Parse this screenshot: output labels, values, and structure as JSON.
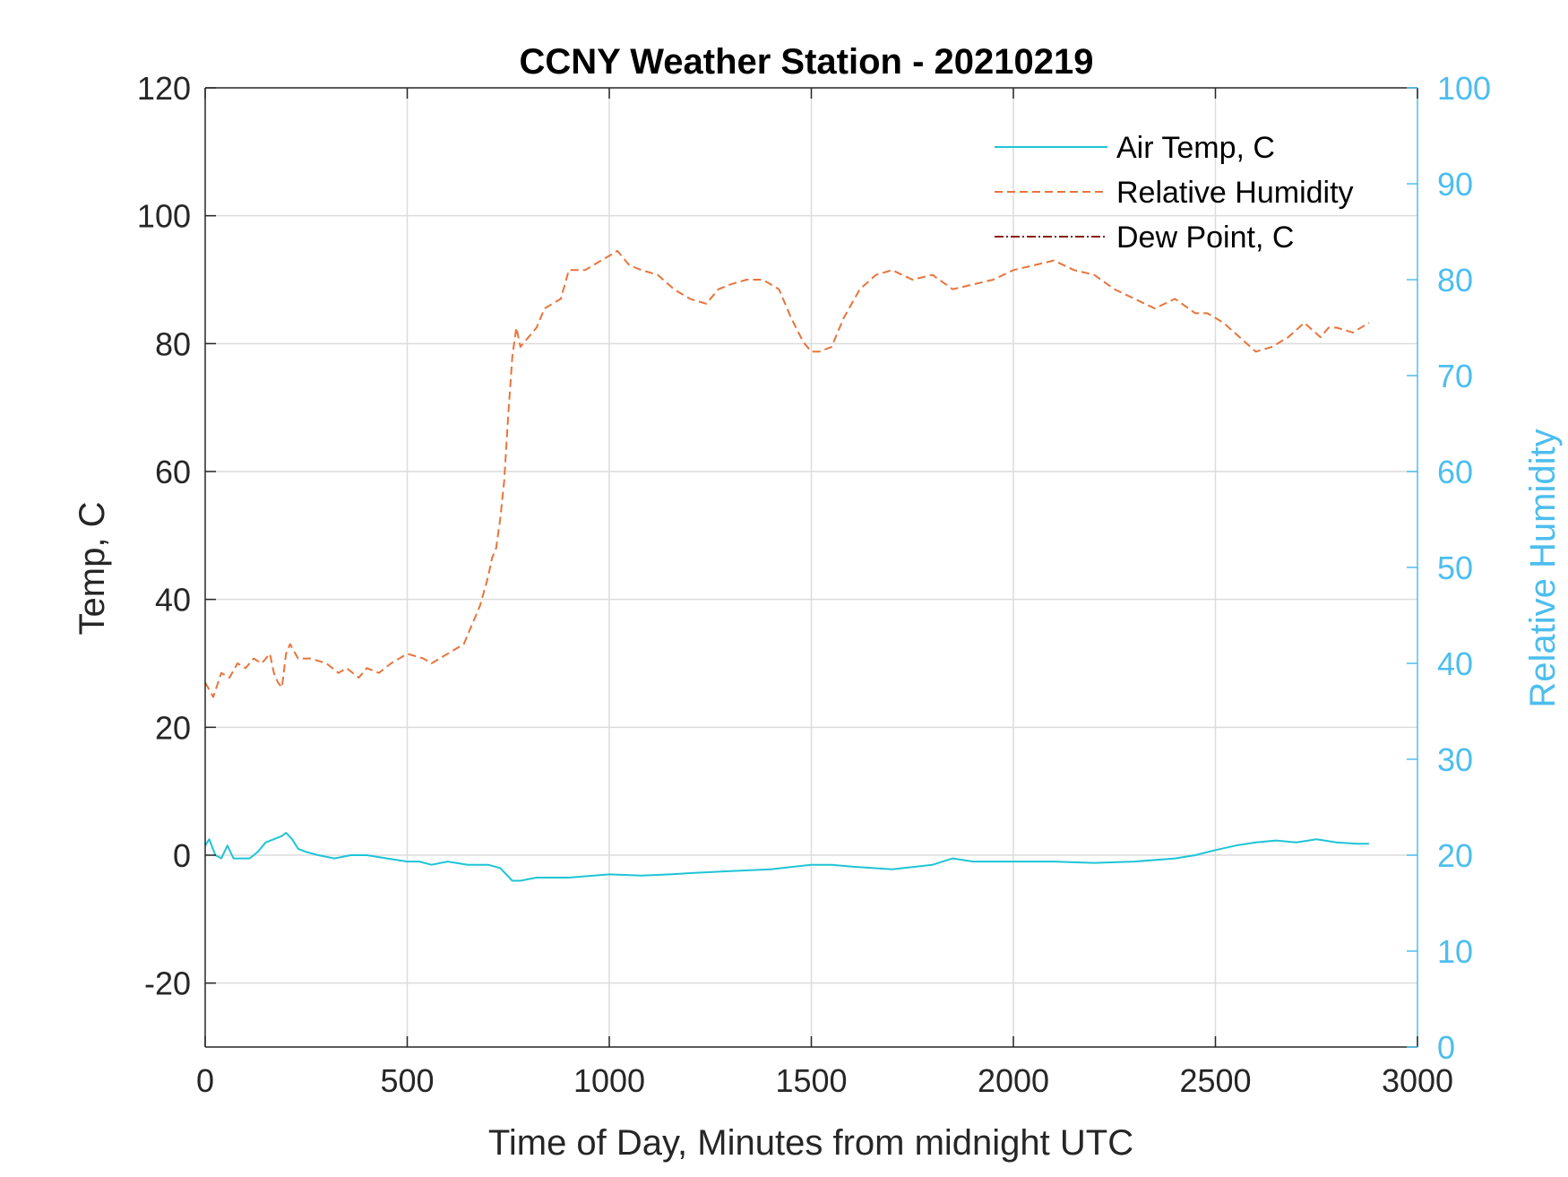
{
  "chart_data": {
    "type": "line",
    "title": "CCNY Weather Station - 20210219",
    "xlabel": "Time of Day, Minutes from midnight UTC",
    "ylabel_left": "Temp, C",
    "ylabel_right": "Relative Humidity",
    "xlim": [
      0,
      3000
    ],
    "ylim_left": [
      -30,
      120
    ],
    "ylim_right": [
      0,
      100
    ],
    "xticks": [
      0,
      500,
      1000,
      1500,
      2000,
      2500,
      3000
    ],
    "yticks_left": [
      -20,
      0,
      20,
      40,
      60,
      80,
      100,
      120
    ],
    "yticks_right": [
      0,
      10,
      20,
      30,
      40,
      50,
      60,
      70,
      80,
      90,
      100
    ],
    "grid": true,
    "legend_position": "top-right",
    "colors": {
      "air_temp": "#1FC4D6",
      "humidity": "#E8743B",
      "dew_point": "#8B1A1A",
      "right_axis": "#4DBEEE",
      "axis": "#262626"
    },
    "series": [
      {
        "name": "Air Temp, C",
        "axis": "left",
        "style": "solid",
        "x": [
          0,
          10,
          25,
          40,
          55,
          70,
          90,
          110,
          130,
          150,
          170,
          190,
          200,
          215,
          230,
          250,
          280,
          320,
          360,
          400,
          450,
          500,
          530,
          560,
          600,
          650,
          700,
          730,
          745,
          760,
          780,
          820,
          900,
          1000,
          1080,
          1150,
          1200,
          1300,
          1400,
          1500,
          1550,
          1600,
          1700,
          1800,
          1850,
          1900,
          2000,
          2100,
          2200,
          2300,
          2400,
          2450,
          2500,
          2550,
          2600,
          2650,
          2700,
          2750,
          2800,
          2850,
          2880
        ],
        "values": [
          1.5,
          2.5,
          0,
          -0.5,
          1.5,
          -0.5,
          -0.5,
          -0.5,
          0.5,
          2,
          2.5,
          3,
          3.5,
          2.5,
          1,
          0.5,
          0,
          -0.5,
          0,
          0,
          -0.5,
          -1,
          -1,
          -1.5,
          -1,
          -1.5,
          -1.5,
          -2,
          -3,
          -4,
          -4,
          -3.5,
          -3.5,
          -3,
          -3.2,
          -3,
          -2.8,
          -2.5,
          -2.2,
          -1.5,
          -1.5,
          -1.8,
          -2.2,
          -1.5,
          -0.5,
          -1,
          -1,
          -1,
          -1.2,
          -1,
          -0.5,
          0,
          0.8,
          1.5,
          2,
          2.3,
          2,
          2.5,
          2,
          1.8,
          1.8
        ]
      },
      {
        "name": "Relative Humidity",
        "axis": "right",
        "style": "dashed",
        "x": [
          0,
          20,
          40,
          60,
          80,
          100,
          120,
          140,
          160,
          170,
          180,
          190,
          200,
          210,
          230,
          260,
          300,
          330,
          350,
          380,
          400,
          430,
          460,
          500,
          540,
          560,
          600,
          640,
          680,
          700,
          710,
          720,
          730,
          740,
          750,
          760,
          770,
          780,
          800,
          820,
          840,
          880,
          900,
          940,
          980,
          1000,
          1020,
          1050,
          1080,
          1120,
          1160,
          1200,
          1240,
          1270,
          1300,
          1340,
          1380,
          1420,
          1450,
          1480,
          1500,
          1520,
          1550,
          1580,
          1620,
          1660,
          1700,
          1750,
          1800,
          1850,
          1900,
          1950,
          2000,
          2050,
          2100,
          2150,
          2200,
          2250,
          2300,
          2350,
          2400,
          2450,
          2480,
          2520,
          2560,
          2600,
          2640,
          2680,
          2720,
          2760,
          2780,
          2800,
          2840,
          2880
        ],
        "values": [
          38,
          36.5,
          39,
          38.5,
          40,
          39.5,
          40.5,
          40,
          41,
          39,
          38,
          37.5,
          41,
          42,
          40.5,
          40.5,
          40,
          39,
          39.5,
          38.5,
          39.5,
          39,
          40,
          41,
          40.5,
          40,
          41,
          42,
          46,
          49,
          51,
          52,
          55,
          59,
          66,
          72,
          75,
          73,
          74,
          75,
          77,
          78,
          81,
          81,
          82,
          82.5,
          83,
          81.5,
          81,
          80.5,
          79,
          78,
          77.5,
          79,
          79.5,
          80,
          80,
          79,
          76,
          73.5,
          72.5,
          72.5,
          73,
          76,
          79,
          80.5,
          81,
          80,
          80.5,
          79,
          79.5,
          80,
          81,
          81.5,
          82,
          81,
          80.5,
          79,
          78,
          77,
          78,
          76.5,
          76.5,
          75.5,
          74,
          72.5,
          73,
          74,
          75.5,
          74,
          75,
          75,
          74.5,
          75.5
        ]
      },
      {
        "name": "Dew Point, C",
        "axis": "left",
        "style": "dashdot",
        "x": [],
        "values": []
      }
    ]
  }
}
